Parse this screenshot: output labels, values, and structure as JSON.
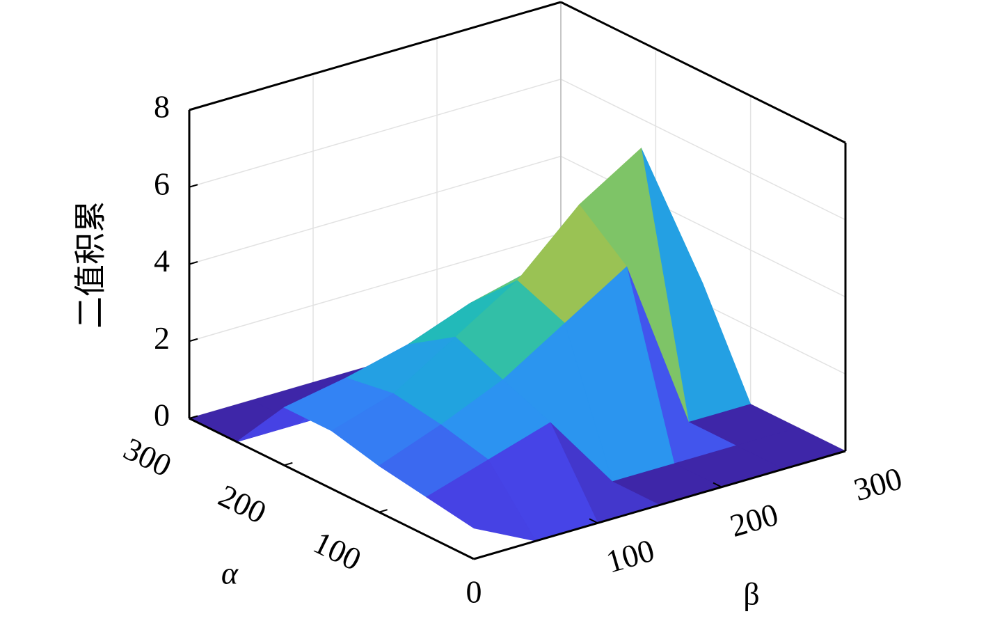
{
  "chart_data": {
    "type": "surface",
    "x_label": "α",
    "y_label": "β",
    "z_label": "二值积累",
    "x": [
      0,
      50,
      100,
      150,
      200,
      250,
      300
    ],
    "y": [
      0,
      50,
      100,
      150,
      200,
      250,
      300
    ],
    "z": [
      [
        0.8,
        0,
        0,
        0,
        0,
        0,
        0
      ],
      [
        1,
        1.5,
        2,
        0,
        0,
        0,
        0
      ],
      [
        1.2,
        1.8,
        2.5,
        3.5,
        4.5,
        0,
        0
      ],
      [
        1.5,
        2,
        3,
        4,
        5.5,
        6.5,
        2.5
      ],
      [
        1.5,
        1.8,
        2.2,
        2.8,
        3.2,
        3.5,
        0
      ],
      [
        0,
        0,
        0,
        0,
        0,
        0,
        0
      ],
      [
        0,
        0,
        0,
        0,
        0,
        0,
        0
      ]
    ],
    "xlim": [
      0,
      300
    ],
    "ylim": [
      0,
      300
    ],
    "zlim": [
      0,
      8
    ],
    "xticks": [
      0,
      100,
      200,
      300
    ],
    "yticks": [
      100,
      200,
      300
    ],
    "zticks": [
      0,
      2,
      4,
      6,
      8
    ],
    "grid": true,
    "colormap": [
      "#3e26a8",
      "#4746eb",
      "#2f8ff6",
      "#14b6c8",
      "#50c886",
      "#b8c040",
      "#f5ba3c",
      "#f9fb15"
    ]
  }
}
